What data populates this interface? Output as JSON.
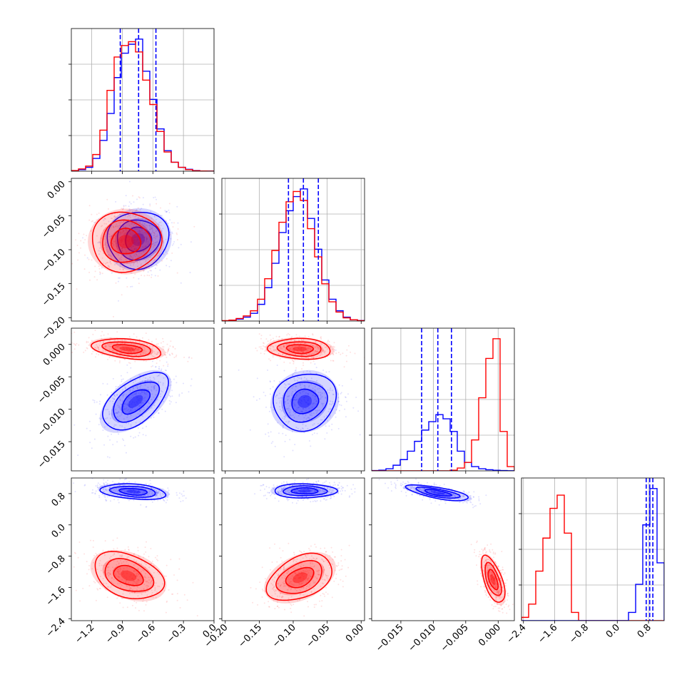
{
  "figure": {
    "type": "corner-plot",
    "parameters": 4,
    "colors": {
      "red_series": "#ff0000",
      "blue_series": "#0000ff",
      "grid": "#b0b0b0",
      "frame": "#000000"
    }
  },
  "chart_data": [
    {
      "type": "histogram",
      "panel": "row1-col1",
      "xlim": [
        -1.4,
        0.0
      ],
      "grid": true,
      "x_tick_labels": [],
      "bin_edges": [
        -1.4,
        -1.33,
        -1.26,
        -1.19,
        -1.12,
        -1.05,
        -0.98,
        -0.91,
        -0.84,
        -0.77,
        -0.7,
        -0.63,
        -0.56,
        -0.49,
        -0.42,
        -0.35,
        -0.28,
        -0.21,
        -0.14,
        -0.07,
        0.0
      ],
      "series": [
        {
          "color": "#0000ff",
          "counts": [
            0.3,
            1.2,
            3,
            10,
            24,
            45,
            73,
            92,
            99,
            103,
            78,
            56,
            33,
            16,
            7,
            3,
            1.5,
            0.5,
            0.2,
            0.1
          ]
        },
        {
          "color": "#ff0000",
          "counts": [
            0.5,
            1.8,
            4,
            13,
            32,
            63,
            89,
            98,
            101,
            93,
            71,
            52,
            31,
            15,
            7,
            3,
            1.2,
            0.4,
            0.2,
            0.1
          ]
        }
      ],
      "quantile_lines": {
        "color": "#0000ff",
        "values": [
          -0.92,
          -0.74,
          -0.57
        ]
      }
    },
    {
      "type": "histogram",
      "panel": "row2-col2",
      "xlim": [
        -0.205,
        0.005
      ],
      "grid": true,
      "x_tick_labels": [],
      "bin_edges": [
        -0.205,
        -0.1945,
        -0.184,
        -0.1735,
        -0.163,
        -0.1525,
        -0.142,
        -0.1315,
        -0.121,
        -0.1105,
        -0.1,
        -0.0895,
        -0.079,
        -0.0685,
        -0.058,
        -0.0475,
        -0.037,
        -0.0265,
        -0.016,
        -0.0055,
        0.005
      ],
      "series": [
        {
          "color": "#0000ff",
          "counts": [
            0.2,
            0.5,
            1.5,
            3,
            6,
            13,
            26,
            45,
            69,
            86,
            97,
            103,
            80,
            56,
            32,
            17,
            8,
            3,
            1,
            0.4
          ]
        },
        {
          "color": "#ff0000",
          "counts": [
            0.3,
            0.7,
            2,
            4,
            8,
            17,
            33,
            55,
            77,
            93,
            101,
            94,
            72,
            50,
            29,
            15,
            7,
            2.5,
            1,
            0.3
          ]
        }
      ],
      "quantile_lines": {
        "color": "#0000ff",
        "values": [
          -0.107,
          -0.085,
          -0.063
        ]
      }
    },
    {
      "type": "histogram",
      "panel": "row3-col3",
      "xlim": [
        -0.0195,
        0.0025
      ],
      "grid": true,
      "x_tick_labels": [],
      "bin_edges": [
        -0.0195,
        -0.0184,
        -0.0173,
        -0.0162,
        -0.0151,
        -0.014,
        -0.0129,
        -0.0118,
        -0.0107,
        -0.0096,
        -0.0085,
        -0.0074,
        -0.0063,
        -0.0052,
        -0.0041,
        -0.003,
        -0.0019,
        -0.0008,
        0.0003,
        0.0014,
        0.0025
      ],
      "series": [
        {
          "color": "#0000ff",
          "counts": [
            0.2,
            0.5,
            1.5,
            4,
            8,
            14,
            21,
            29,
            35,
            40,
            37,
            28,
            14,
            6,
            3,
            1.5,
            0.8,
            0.4,
            0.2,
            0.1
          ]
        },
        {
          "color": "#ff0000",
          "counts": [
            0,
            0,
            0,
            0,
            0,
            0,
            0,
            0,
            0,
            0,
            0,
            0.5,
            2,
            6,
            22,
            52,
            80,
            94,
            28,
            3
          ]
        }
      ],
      "quantile_lines": {
        "color": "#0000ff",
        "values": [
          -0.0118,
          -0.0093,
          -0.0072
        ]
      }
    },
    {
      "type": "histogram",
      "panel": "row4-col4",
      "xlim": [
        -2.45,
        1.2
      ],
      "grid": true,
      "x_tick_labels": [
        "−2.4",
        "−1.6",
        "−0.8",
        "0.0",
        "0.8"
      ],
      "bin_edges": [
        -2.45,
        -2.2675,
        -2.085,
        -1.9025,
        -1.72,
        -1.5375,
        -1.355,
        -1.1725,
        -0.99,
        -0.8075,
        -0.625,
        -0.4425,
        -0.26,
        -0.0775,
        0.105,
        0.2875,
        0.47,
        0.6525,
        0.835,
        1.0175,
        1.2
      ],
      "series": [
        {
          "color": "#ff0000",
          "counts": [
            2,
            10,
            30,
            50,
            68,
            76,
            53,
            5,
            0,
            0,
            0,
            0,
            0,
            0,
            0,
            0,
            0,
            0,
            0,
            0
          ]
        },
        {
          "color": "#0000ff",
          "counts": [
            0,
            0,
            0,
            0,
            0,
            0,
            0,
            0,
            0,
            0,
            0,
            0,
            0,
            0,
            0,
            5,
            22,
            58,
            80,
            35
          ]
        }
      ],
      "quantile_lines": {
        "color": "#0000ff",
        "values": [
          0.74,
          0.83,
          0.91
        ]
      }
    },
    {
      "type": "contour",
      "panel": "row2-col1",
      "xlim": [
        -1.4,
        0.0
      ],
      "ylim": [
        -0.205,
        0.005
      ],
      "grid": false,
      "y_tick_labels": [
        "0.00",
        "−0.05",
        "−0.10",
        "−0.15",
        "−0.20"
      ],
      "series": [
        {
          "color": "#0000ff",
          "center": [
            -0.745,
            -0.085
          ],
          "sigma": [
            0.15,
            0.021
          ],
          "corr": 0.05
        },
        {
          "color": "#ff0000",
          "center": [
            -0.865,
            -0.088
          ],
          "sigma": [
            0.17,
            0.022
          ],
          "corr": 0.0
        }
      ]
    },
    {
      "type": "contour",
      "panel": "row3-col1",
      "xlim": [
        -1.4,
        0.0
      ],
      "ylim": [
        -0.0195,
        0.0025
      ],
      "grid": false,
      "y_tick_labels": [
        "0.000",
        "−0.005",
        "−0.010",
        "−0.015"
      ],
      "series": [
        {
          "color": "#0000ff",
          "center": [
            -0.77,
            -0.0088
          ],
          "sigma": [
            0.16,
            0.0022
          ],
          "corr": 0.55
        },
        {
          "color": "#ff0000",
          "center": [
            -0.85,
            -0.0007
          ],
          "sigma": [
            0.17,
            0.0008
          ],
          "corr": -0.35
        }
      ]
    },
    {
      "type": "contour",
      "panel": "row3-col2",
      "xlim": [
        -0.205,
        0.005
      ],
      "ylim": [
        -0.0195,
        0.0025
      ],
      "grid": false,
      "series": [
        {
          "color": "#0000ff",
          "center": [
            -0.083,
            -0.0088
          ],
          "sigma": [
            0.023,
            0.0022
          ],
          "corr": 0.1
        },
        {
          "color": "#ff0000",
          "center": [
            -0.09,
            -0.0007
          ],
          "sigma": [
            0.023,
            0.0008
          ],
          "corr": -0.1
        }
      ]
    },
    {
      "type": "contour",
      "panel": "row4-col1",
      "xlim": [
        -1.4,
        0.0
      ],
      "ylim": [
        -2.45,
        1.2
      ],
      "grid": false,
      "x_tick_labels": [
        "−1.2",
        "−0.9",
        "−0.6",
        "−0.3",
        "0.0"
      ],
      "y_tick_labels": [
        "0.8",
        "0.0",
        "−0.8",
        "−1.6",
        "−2.4"
      ],
      "series": [
        {
          "color": "#0000ff",
          "center": [
            -0.79,
            0.85
          ],
          "sigma": [
            0.16,
            0.1
          ],
          "corr": -0.3
        },
        {
          "color": "#ff0000",
          "center": [
            -0.84,
            -1.3
          ],
          "sigma": [
            0.17,
            0.3
          ],
          "corr": -0.35
        }
      ]
    },
    {
      "type": "contour",
      "panel": "row4-col2",
      "xlim": [
        -0.205,
        0.005
      ],
      "ylim": [
        -2.45,
        1.2
      ],
      "grid": false,
      "x_tick_labels": [
        "−0.20",
        "−0.15",
        "−0.10",
        "−0.05",
        "0.00"
      ],
      "series": [
        {
          "color": "#0000ff",
          "center": [
            -0.083,
            0.87
          ],
          "sigma": [
            0.023,
            0.09
          ],
          "corr": 0.0
        },
        {
          "color": "#ff0000",
          "center": [
            -0.09,
            -1.35
          ],
          "sigma": [
            0.024,
            0.3
          ],
          "corr": 0.4
        }
      ]
    },
    {
      "type": "contour",
      "panel": "row4-col3",
      "xlim": [
        -0.0195,
        0.0025
      ],
      "ylim": [
        -2.45,
        1.2
      ],
      "grid": false,
      "x_tick_labels": [
        "−0.015",
        "−0.010",
        "−0.005",
        "0.000"
      ],
      "series": [
        {
          "color": "#0000ff",
          "center": [
            -0.0093,
            0.82
          ],
          "sigma": [
            0.0024,
            0.1
          ],
          "corr": -0.7
        },
        {
          "color": "#ff0000",
          "center": [
            -0.0008,
            -1.4
          ],
          "sigma": [
            0.0009,
            0.3
          ],
          "corr": -0.6
        }
      ]
    }
  ]
}
